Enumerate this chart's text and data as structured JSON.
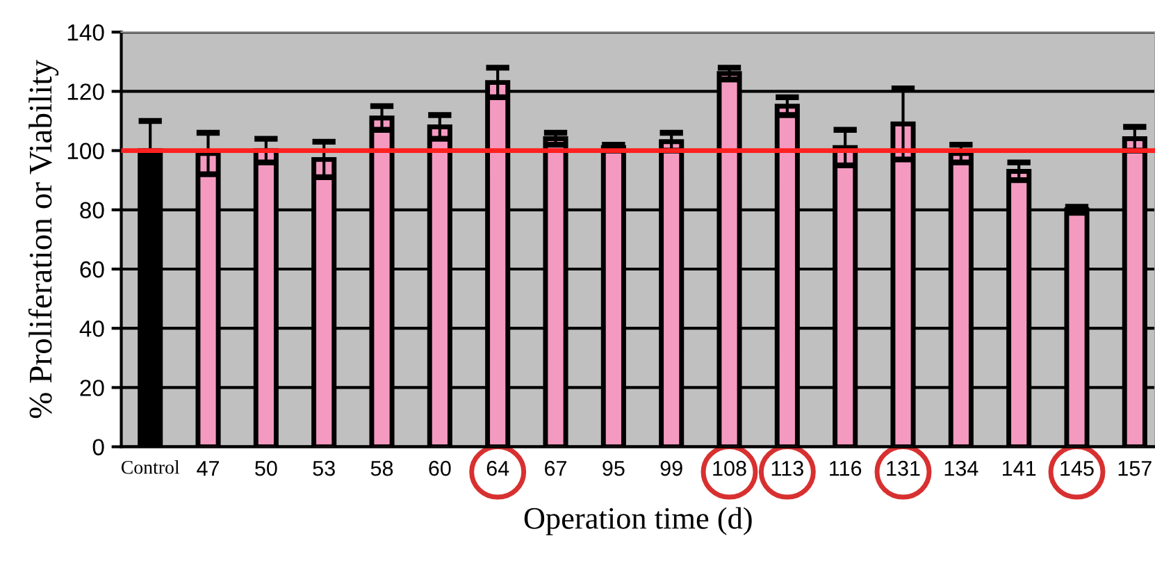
{
  "chart_data": {
    "type": "bar",
    "xlabel": "Operation time (d)",
    "ylabel": "% Proliferation or Viability",
    "categories": [
      "Control",
      "47",
      "50",
      "53",
      "58",
      "60",
      "64",
      "67",
      "95",
      "99",
      "108",
      "113",
      "116",
      "131",
      "134",
      "141",
      "145",
      "157"
    ],
    "values": [
      100,
      99,
      100,
      97,
      111,
      108,
      123,
      104,
      101,
      103,
      126,
      115,
      101,
      109,
      99,
      93,
      80,
      104
    ],
    "errors": [
      10,
      7,
      4,
      6,
      4,
      4,
      5,
      2,
      1,
      3,
      2,
      3,
      6,
      12,
      3,
      3,
      1,
      4
    ],
    "colors": [
      "#000000",
      "#f49ac1",
      "#f49ac1",
      "#f49ac1",
      "#f49ac1",
      "#f49ac1",
      "#f49ac1",
      "#f49ac1",
      "#f49ac1",
      "#f49ac1",
      "#f49ac1",
      "#f49ac1",
      "#f49ac1",
      "#f49ac1",
      "#f49ac1",
      "#f49ac1",
      "#f49ac1",
      "#f49ac1"
    ],
    "ylim": [
      0,
      140
    ],
    "yticks": [
      0,
      20,
      40,
      60,
      80,
      100,
      120,
      140
    ],
    "grid": "y",
    "ref_lines": [
      {
        "axis": "y",
        "value": 100,
        "label": null,
        "color": "#ff2020"
      }
    ]
  }
}
